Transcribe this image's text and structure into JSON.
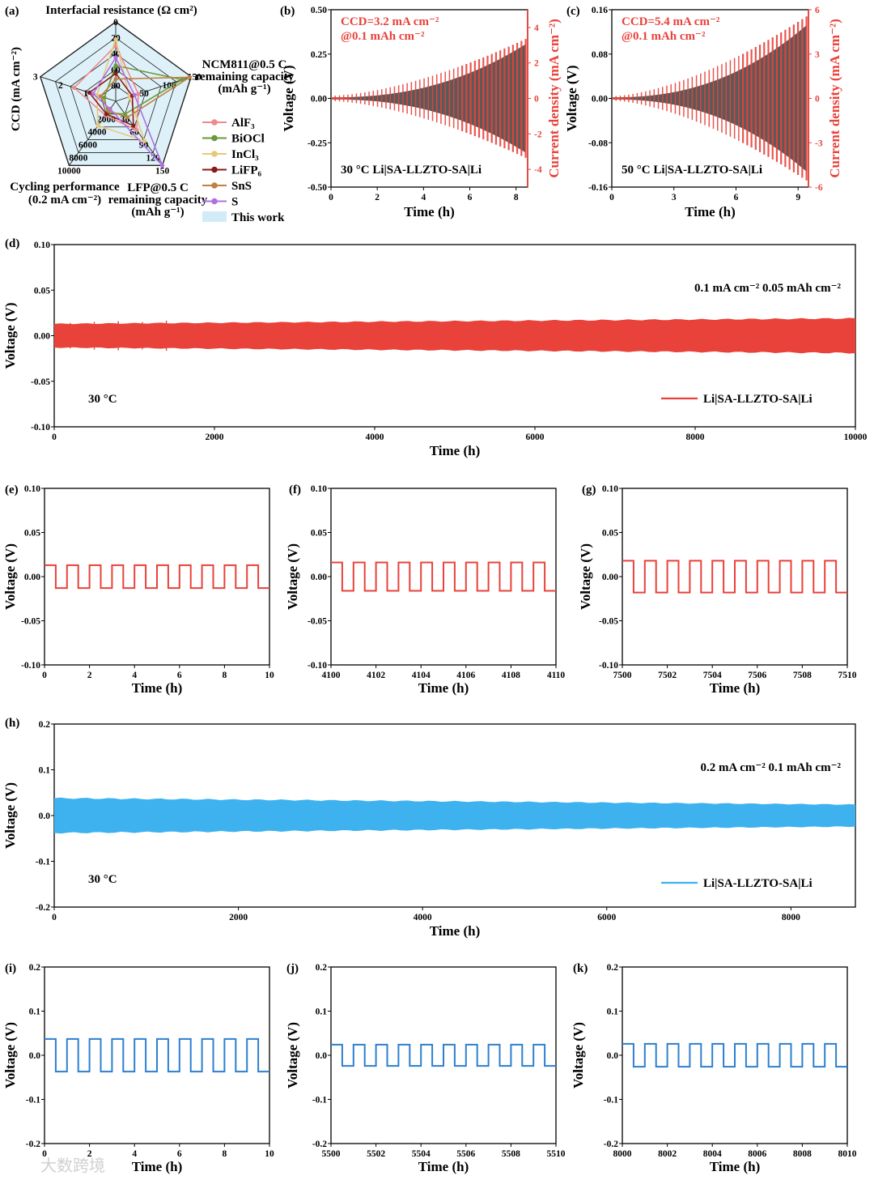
{
  "colors": {
    "red": "#e8423a",
    "blue": "#3db2ee",
    "blue_dark": "#2d7fd0",
    "gray": "#555555",
    "radar_fill": "#d8eef8"
  },
  "watermark": "大数跨境",
  "chart_data": [
    {
      "id": "a",
      "panel": "(a)",
      "type": "radar",
      "axes": [
        {
          "label": "Interfacial resistance (Ω cm²)",
          "ticks": [
            "0",
            "20",
            "40",
            "60",
            "80"
          ]
        },
        {
          "label": "NCM811@0.5 C remaining capacity (mAh g⁻¹)",
          "label_lines": [
            "NCM811@0.5 C",
            "remaining capacity",
            "(mAh g⁻¹)"
          ],
          "ticks": [
            "50",
            "100",
            "150"
          ]
        },
        {
          "label": "LFP@0.5 C remaining capacity (mAh g⁻¹)",
          "label_lines": [
            "LFP@0.5 C",
            "remaining capacity",
            "(mAh g⁻¹)"
          ],
          "ticks": [
            "30",
            "60",
            "90",
            "120",
            "150"
          ]
        },
        {
          "label": "Cycling performance (0.2 mA cm⁻²)",
          "label_lines": [
            "Cycling performance",
            "(0.2 mA cm⁻²)"
          ],
          "ticks": [
            "2000",
            "4000",
            "6000",
            "8000",
            "10000"
          ]
        },
        {
          "label": "CCD (mA cm⁻²)",
          "ticks": [
            "1",
            "2",
            "3"
          ]
        }
      ],
      "legend": [
        "AlF₃",
        "BiOCl",
        "InCl₃",
        "LiFP₆",
        "SnS",
        "S",
        "This work"
      ],
      "series_colors": [
        "#ef8a8a",
        "#6a9a3a",
        "#e8c878",
        "#8b1a1a",
        "#c08040",
        "#b070e0",
        "#bfe3f5"
      ],
      "series": [
        {
          "name": "AlF₃",
          "norm": [
            0.7,
            0.3,
            0.45,
            0.22,
            0.55
          ]
        },
        {
          "name": "BiOCl",
          "norm": [
            0.45,
            0.88,
            0.2,
            0.18,
            0.15
          ]
        },
        {
          "name": "InCl₃",
          "norm": [
            0.78,
            0.18,
            0.62,
            0.38,
            0.25
          ]
        },
        {
          "name": "LiFP₆",
          "norm": [
            0.35,
            0.22,
            0.38,
            0.2,
            0.35
          ]
        },
        {
          "name": "SnS",
          "norm": [
            0.28,
            0.98,
            0.25,
            0.15,
            0.2
          ]
        },
        {
          "name": "S",
          "norm": [
            0.55,
            0.25,
            1.0,
            0.12,
            0.3
          ]
        },
        {
          "name": "This work",
          "norm": [
            1.0,
            1.0,
            1.0,
            1.0,
            1.0
          ]
        }
      ]
    },
    {
      "id": "b",
      "panel": "(b)",
      "type": "line",
      "xlabel": "Time (h)",
      "ylabel": "Voltage (V)",
      "y2label": "Current density (mA cm⁻²)",
      "xlim": [
        0,
        8.5
      ],
      "xticks": [
        "0",
        "2",
        "4",
        "6",
        "8"
      ],
      "ylim": [
        -0.5,
        0.5
      ],
      "yticks": [
        "-0.50",
        "-0.25",
        "0.00",
        "0.25",
        "0.50"
      ],
      "y2lim": [
        -5,
        5
      ],
      "y2ticks": [
        "-4",
        "-2",
        "0",
        "2",
        "4"
      ],
      "annotations": [
        "CCD=3.2 mA cm⁻²",
        "@0.1 mAh cm⁻²",
        "30 °C  Li|SA-LLZTO-SA|Li"
      ],
      "voltage_envelope_end": 0.3,
      "max_current_density": 3.2
    },
    {
      "id": "c",
      "panel": "(c)",
      "type": "line",
      "xlabel": "Time (h)",
      "ylabel": "Voltage (V)",
      "y2label": "Current density (mA cm⁻²)",
      "xlim": [
        0,
        9.5
      ],
      "xticks": [
        "0",
        "3",
        "6",
        "9"
      ],
      "ylim": [
        -0.16,
        0.16
      ],
      "yticks": [
        "-0.16",
        "-0.08",
        "0.00",
        "0.08",
        "0.16"
      ],
      "y2lim": [
        -6,
        6
      ],
      "y2ticks": [
        "-6",
        "-3",
        "0",
        "3",
        "6"
      ],
      "annotations": [
        "CCD=5.4 mA cm⁻²",
        "@0.1 mAh cm⁻²",
        "50 °C  Li|SA-LLZTO-SA|Li"
      ],
      "voltage_envelope_end": 0.13,
      "max_current_density": 5.4
    },
    {
      "id": "d",
      "panel": "(d)",
      "type": "line",
      "xlabel": "Time (h)",
      "ylabel": "Voltage (V)",
      "xlim": [
        0,
        10000
      ],
      "xticks": [
        "0",
        "2000",
        "4000",
        "6000",
        "8000",
        "10000"
      ],
      "ylim": [
        -0.1,
        0.1
      ],
      "yticks": [
        "-0.10",
        "-0.05",
        "0.00",
        "0.05",
        "0.10"
      ],
      "annotations": [
        "0.1 mA cm⁻²  0.05 mAh cm⁻²",
        "30 °C"
      ],
      "legend": [
        "Li|SA-LLZTO-SA|Li"
      ],
      "amplitude_start": 0.013,
      "amplitude_end": 0.019
    },
    {
      "id": "e",
      "panel": "(e)",
      "type": "line",
      "xlabel": "Time (h)",
      "ylabel": "Voltage (V)",
      "xlim": [
        0,
        10
      ],
      "xticks": [
        "0",
        "2",
        "4",
        "6",
        "8",
        "10"
      ],
      "ylim": [
        -0.1,
        0.1
      ],
      "yticks": [
        "-0.10",
        "-0.05",
        "0.00",
        "0.05",
        "0.10"
      ],
      "amplitude": 0.013,
      "cycles": 10
    },
    {
      "id": "f",
      "panel": "(f)",
      "type": "line",
      "xlabel": "Time (h)",
      "ylabel": "Voltage (V)",
      "xlim": [
        4100,
        4110
      ],
      "xticks": [
        "4100",
        "4102",
        "4104",
        "4106",
        "4108",
        "4110"
      ],
      "ylim": [
        -0.1,
        0.1
      ],
      "yticks": [
        "-0.10",
        "-0.05",
        "0.00",
        "0.05",
        "0.10"
      ],
      "amplitude": 0.016,
      "cycles": 10
    },
    {
      "id": "g",
      "panel": "(g)",
      "type": "line",
      "xlabel": "Time (h)",
      "ylabel": "Voltage (V)",
      "xlim": [
        7500,
        7510
      ],
      "xticks": [
        "7500",
        "7502",
        "7504",
        "7506",
        "7508",
        "7510"
      ],
      "ylim": [
        -0.1,
        0.1
      ],
      "yticks": [
        "-0.10",
        "-0.05",
        "0.00",
        "0.05",
        "0.10"
      ],
      "amplitude": 0.018,
      "cycles": 10
    },
    {
      "id": "h",
      "panel": "(h)",
      "type": "line",
      "xlabel": "Time (h)",
      "ylabel": "Voltage (V)",
      "xlim": [
        0,
        8700
      ],
      "xticks": [
        "0",
        "2000",
        "4000",
        "6000",
        "8000"
      ],
      "ylim": [
        -0.2,
        0.2
      ],
      "yticks": [
        "-0.2",
        "-0.1",
        "0.0",
        "0.1",
        "0.2"
      ],
      "annotations": [
        "0.2 mA cm⁻²  0.1 mAh cm⁻²",
        "30 °C"
      ],
      "legend": [
        "Li|SA-LLZTO-SA|Li"
      ],
      "amplitude_start": 0.038,
      "amplitude_end": 0.024
    },
    {
      "id": "i",
      "panel": "(i)",
      "type": "line",
      "xlabel": "Time (h)",
      "ylabel": "Voltage (V)",
      "xlim": [
        0,
        10
      ],
      "xticks": [
        "0",
        "2",
        "4",
        "6",
        "8",
        "10"
      ],
      "ylim": [
        -0.2,
        0.2
      ],
      "yticks": [
        "-0.2",
        "-0.1",
        "0.0",
        "0.1",
        "0.2"
      ],
      "amplitude": 0.037,
      "cycles": 10
    },
    {
      "id": "j",
      "panel": "(j)",
      "type": "line",
      "xlabel": "Time (h)",
      "ylabel": "Voltage (V)",
      "xlim": [
        5500,
        5510
      ],
      "xticks": [
        "5500",
        "5502",
        "5504",
        "5506",
        "5508",
        "5510"
      ],
      "ylim": [
        -0.2,
        0.2
      ],
      "yticks": [
        "-0.2",
        "-0.1",
        "0.0",
        "0.1",
        "0.2"
      ],
      "amplitude": 0.024,
      "cycles": 10
    },
    {
      "id": "k",
      "panel": "(k)",
      "type": "line",
      "xlabel": "Time (h)",
      "ylabel": "Voltage (V)",
      "xlim": [
        8000,
        8010
      ],
      "xticks": [
        "8000",
        "8002",
        "8004",
        "8006",
        "8008",
        "8010"
      ],
      "ylim": [
        -0.2,
        0.2
      ],
      "yticks": [
        "-0.2",
        "-0.1",
        "0.0",
        "0.1",
        "0.2"
      ],
      "amplitude": 0.026,
      "cycles": 10
    }
  ]
}
